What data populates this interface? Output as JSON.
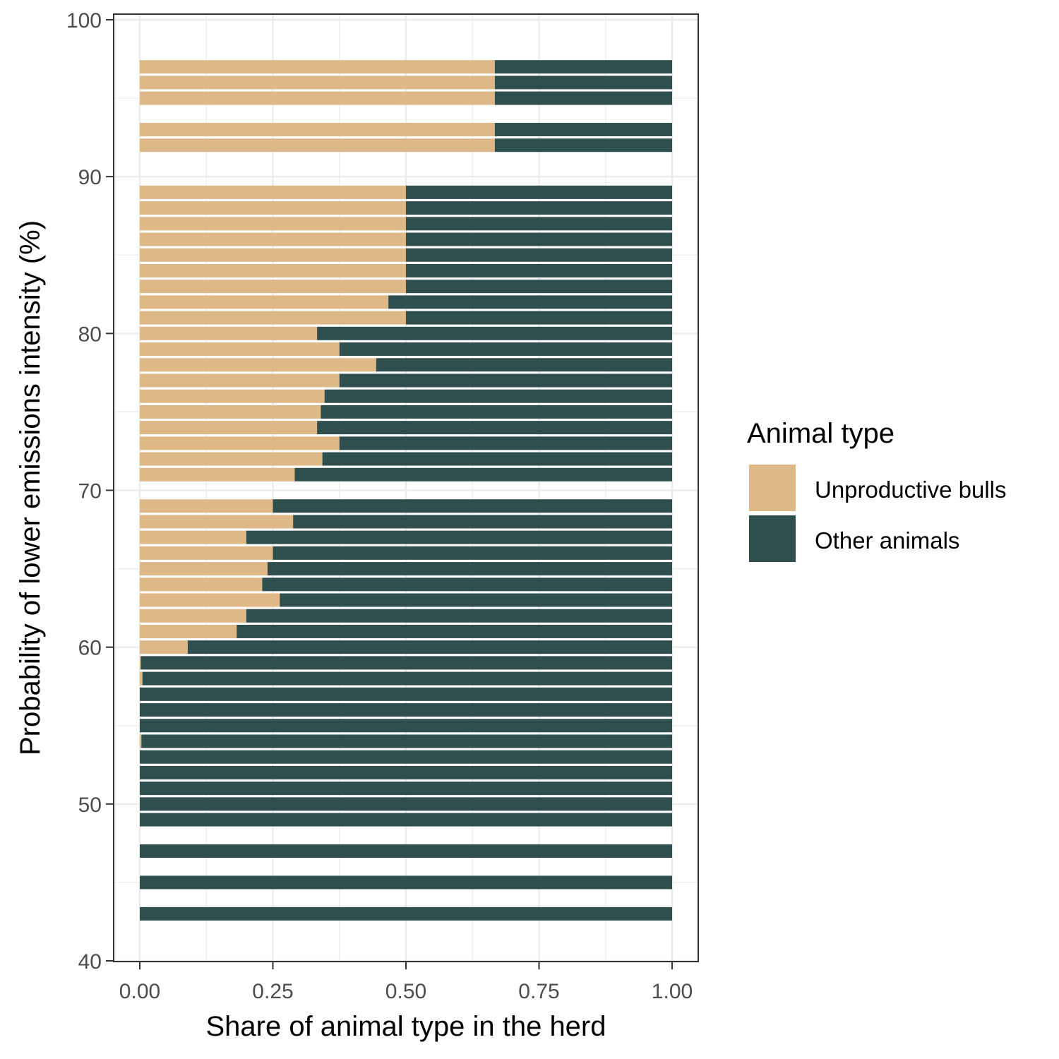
{
  "chart_data": {
    "type": "bar",
    "orientation": "horizontal",
    "stacked": true,
    "xlabel": "Share of animal type in the herd",
    "ylabel": "Probability of lower emissions intensity (%)",
    "xlim": [
      0,
      1
    ],
    "ylim": [
      40,
      100
    ],
    "x_ticks": [
      "0.00",
      "0.25",
      "0.50",
      "0.75",
      "1.00"
    ],
    "y_ticks": [
      "40",
      "50",
      "60",
      "70",
      "80",
      "90",
      "100"
    ],
    "grid": true,
    "legend": {
      "title": "Animal type",
      "position": "right",
      "entries": [
        "Unproductive bulls",
        "Other animals"
      ]
    },
    "colors": {
      "Unproductive bulls": "#DEB887",
      "Other animals": "#2F4F4F"
    },
    "y": [
      43,
      45,
      47,
      49,
      50,
      51,
      52,
      53,
      54,
      55,
      56,
      57,
      58,
      59,
      60,
      61,
      62,
      63,
      64,
      65,
      66,
      67,
      68,
      69,
      71,
      72,
      73,
      74,
      75,
      76,
      77,
      78,
      79,
      80,
      81,
      82,
      83,
      84,
      85,
      86,
      87,
      88,
      89,
      92,
      93,
      95,
      96,
      97
    ],
    "series": [
      {
        "name": "Unproductive bulls",
        "values": [
          0,
          0,
          0,
          0,
          0,
          0,
          0,
          0,
          0.003,
          0,
          0,
          0,
          0.005,
          0.002,
          0.09,
          0.182,
          0.2,
          0.263,
          0.23,
          0.24,
          0.25,
          0.2,
          0.288,
          0.25,
          0.291,
          0.343,
          0.375,
          0.333,
          0.34,
          0.347,
          0.375,
          0.444,
          0.375,
          0.333,
          0.5,
          0.467,
          0.5,
          0.5,
          0.5,
          0.5,
          0.5,
          0.5,
          0.5,
          0.667,
          0.667,
          0.667,
          0.667,
          0.667
        ]
      },
      {
        "name": "Other animals",
        "values": [
          1,
          1,
          1,
          1,
          1,
          1,
          1,
          1,
          0.997,
          1,
          1,
          1,
          0.995,
          0.998,
          0.91,
          0.818,
          0.8,
          0.737,
          0.77,
          0.76,
          0.75,
          0.8,
          0.712,
          0.75,
          0.709,
          0.657,
          0.625,
          0.667,
          0.66,
          0.653,
          0.625,
          0.556,
          0.625,
          0.667,
          0.5,
          0.533,
          0.5,
          0.5,
          0.5,
          0.5,
          0.5,
          0.5,
          0.5,
          0.333,
          0.333,
          0.333,
          0.333,
          0.333
        ]
      }
    ]
  }
}
